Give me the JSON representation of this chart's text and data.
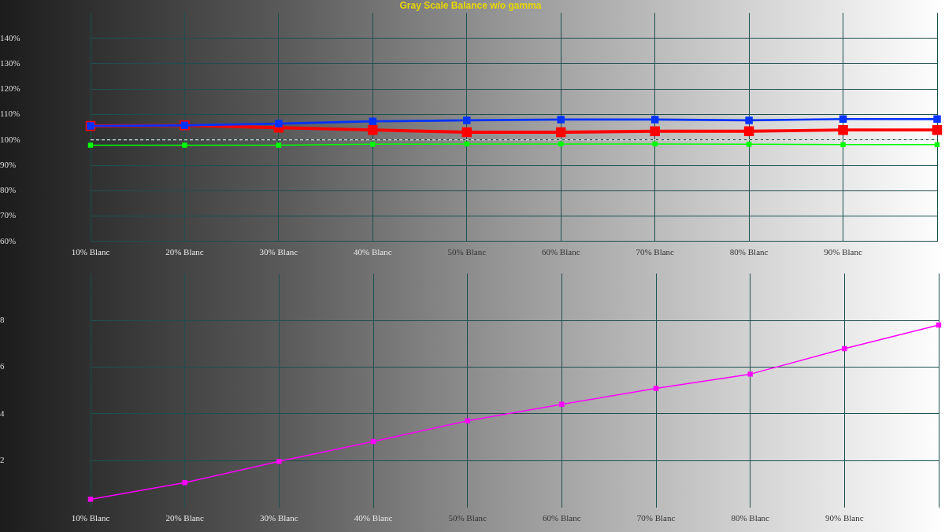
{
  "chart_data": [
    {
      "type": "line",
      "title": "Gray Scale Balance w/o gamma",
      "categories": [
        "10% Blanc",
        "20% Blanc",
        "30% Blanc",
        "40% Blanc",
        "50% Blanc",
        "60% Blanc",
        "70% Blanc",
        "80% Blanc",
        "90% Blanc",
        null
      ],
      "series": [
        {
          "color": "#ff0000",
          "values": [
            105.5,
            105.7,
            104.8,
            103.9,
            103.0,
            103.0,
            103.4,
            103.4,
            103.9,
            103.9
          ]
        },
        {
          "color": "#0033ff",
          "values": [
            105.5,
            105.7,
            106.4,
            107.3,
            107.7,
            108.0,
            108.0,
            107.7,
            108.2,
            108.2
          ]
        },
        {
          "color": "#00ff00",
          "values": [
            97.9,
            97.9,
            97.9,
            98.3,
            98.4,
            98.4,
            98.4,
            98.3,
            98.1,
            98.1
          ]
        }
      ],
      "ylim": [
        60,
        150
      ],
      "yticks": [
        {
          "value": 60,
          "label": "60%"
        },
        {
          "value": 70,
          "label": "70%"
        },
        {
          "value": 80,
          "label": "80%"
        },
        {
          "value": 90,
          "label": "90%"
        },
        {
          "value": 100,
          "label": "100%"
        },
        {
          "value": 110,
          "label": "110%"
        },
        {
          "value": 120,
          "label": "120%"
        },
        {
          "value": 130,
          "label": "130%"
        },
        {
          "value": 140,
          "label": "140%"
        }
      ],
      "ref_lines": [
        {
          "axis": "y",
          "value": 100,
          "color": "#ffffff",
          "line_style": "dashed"
        }
      ],
      "grid": true,
      "marker": "square",
      "legend": false
    },
    {
      "type": "line",
      "categories": [
        "10% Blanc",
        "20% Blanc",
        "30% Blanc",
        "40% Blanc",
        "50% Blanc",
        "60% Blanc",
        "70% Blanc",
        "80% Blanc",
        "90% Blanc",
        null
      ],
      "series": [
        {
          "color": "#ff00ff",
          "values": [
            0.35,
            1.06,
            1.97,
            2.82,
            3.7,
            4.41,
            5.09,
            5.7,
            6.79,
            7.8
          ]
        }
      ],
      "ylim": [
        0,
        10
      ],
      "yticks": [
        2,
        4,
        6,
        8
      ],
      "grid": true,
      "marker": "square",
      "legend": false
    }
  ]
}
